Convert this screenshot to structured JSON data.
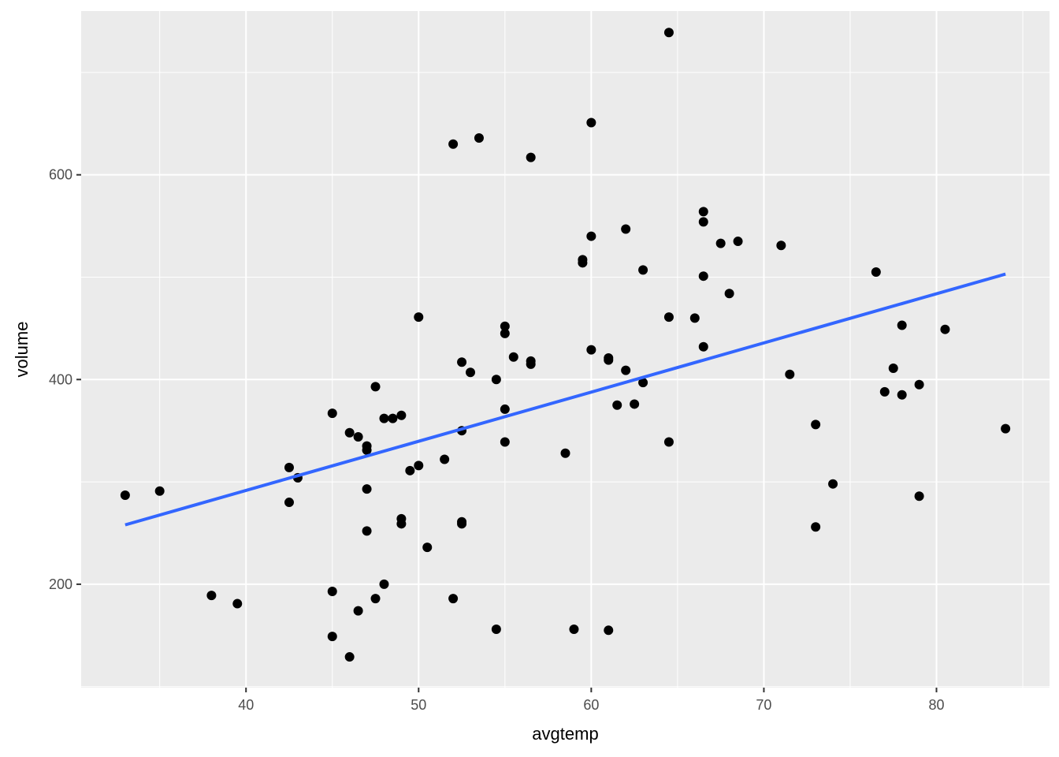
{
  "chart_data": {
    "type": "scatter",
    "xlabel": "avgtemp",
    "ylabel": "volume",
    "xlim": [
      30.45,
      86.55
    ],
    "ylim": [
      99,
      760
    ],
    "x_ticks": [
      40,
      50,
      60,
      70,
      80
    ],
    "y_ticks": [
      200,
      400,
      600
    ],
    "x_tick_labels": [
      "40",
      "50",
      "60",
      "70",
      "80"
    ],
    "y_tick_labels": [
      "200",
      "400",
      "600"
    ],
    "grid": true,
    "colors": {
      "panel": "#ebebeb",
      "grid": "#ffffff",
      "points": "#000000",
      "fit_line": "#3366ff"
    },
    "fit_line": {
      "x": [
        33,
        84
      ],
      "y": [
        258,
        503
      ]
    },
    "points": [
      [
        33,
        287
      ],
      [
        35,
        291
      ],
      [
        38,
        189
      ],
      [
        39.5,
        181
      ],
      [
        42.5,
        314
      ],
      [
        42.5,
        280
      ],
      [
        43,
        304
      ],
      [
        45,
        367
      ],
      [
        45,
        193
      ],
      [
        45,
        149
      ],
      [
        46,
        348
      ],
      [
        46,
        129
      ],
      [
        46.5,
        344
      ],
      [
        46.5,
        174
      ],
      [
        47,
        335
      ],
      [
        47,
        331
      ],
      [
        47,
        293
      ],
      [
        47,
        252
      ],
      [
        47.5,
        393
      ],
      [
        47.5,
        186
      ],
      [
        48,
        362
      ],
      [
        48,
        200
      ],
      [
        48.5,
        362
      ],
      [
        49,
        365
      ],
      [
        49,
        264
      ],
      [
        49,
        259
      ],
      [
        49.5,
        311
      ],
      [
        50,
        461
      ],
      [
        50,
        316
      ],
      [
        50.5,
        236
      ],
      [
        51.5,
        322
      ],
      [
        52,
        630
      ],
      [
        52,
        186
      ],
      [
        52.5,
        417
      ],
      [
        52.5,
        350
      ],
      [
        52.5,
        261
      ],
      [
        52.5,
        259
      ],
      [
        53,
        407
      ],
      [
        53.5,
        636
      ],
      [
        54.5,
        400
      ],
      [
        54.5,
        156
      ],
      [
        55,
        452
      ],
      [
        55,
        445
      ],
      [
        55,
        371
      ],
      [
        55,
        339
      ],
      [
        55.5,
        422
      ],
      [
        56.5,
        617
      ],
      [
        56.5,
        418
      ],
      [
        56.5,
        415
      ],
      [
        58.5,
        328
      ],
      [
        59,
        156
      ],
      [
        59.5,
        517
      ],
      [
        59.5,
        514
      ],
      [
        60,
        651
      ],
      [
        60,
        540
      ],
      [
        60,
        429
      ],
      [
        61,
        421
      ],
      [
        61,
        419
      ],
      [
        61,
        155
      ],
      [
        61.5,
        375
      ],
      [
        62,
        547
      ],
      [
        62,
        409
      ],
      [
        62.5,
        376
      ],
      [
        63,
        507
      ],
      [
        63,
        397
      ],
      [
        64.5,
        739
      ],
      [
        64.5,
        461
      ],
      [
        64.5,
        339
      ],
      [
        66,
        460
      ],
      [
        66.5,
        564
      ],
      [
        66.5,
        554
      ],
      [
        66.5,
        501
      ],
      [
        66.5,
        432
      ],
      [
        67.5,
        533
      ],
      [
        68,
        484
      ],
      [
        68.5,
        535
      ],
      [
        71,
        531
      ],
      [
        71.5,
        405
      ],
      [
        73,
        356
      ],
      [
        73,
        256
      ],
      [
        74,
        298
      ],
      [
        76.5,
        505
      ],
      [
        77,
        388
      ],
      [
        77.5,
        411
      ],
      [
        78,
        453
      ],
      [
        78,
        385
      ],
      [
        79,
        395
      ],
      [
        79,
        286
      ],
      [
        80.5,
        449
      ],
      [
        84,
        352
      ]
    ]
  }
}
